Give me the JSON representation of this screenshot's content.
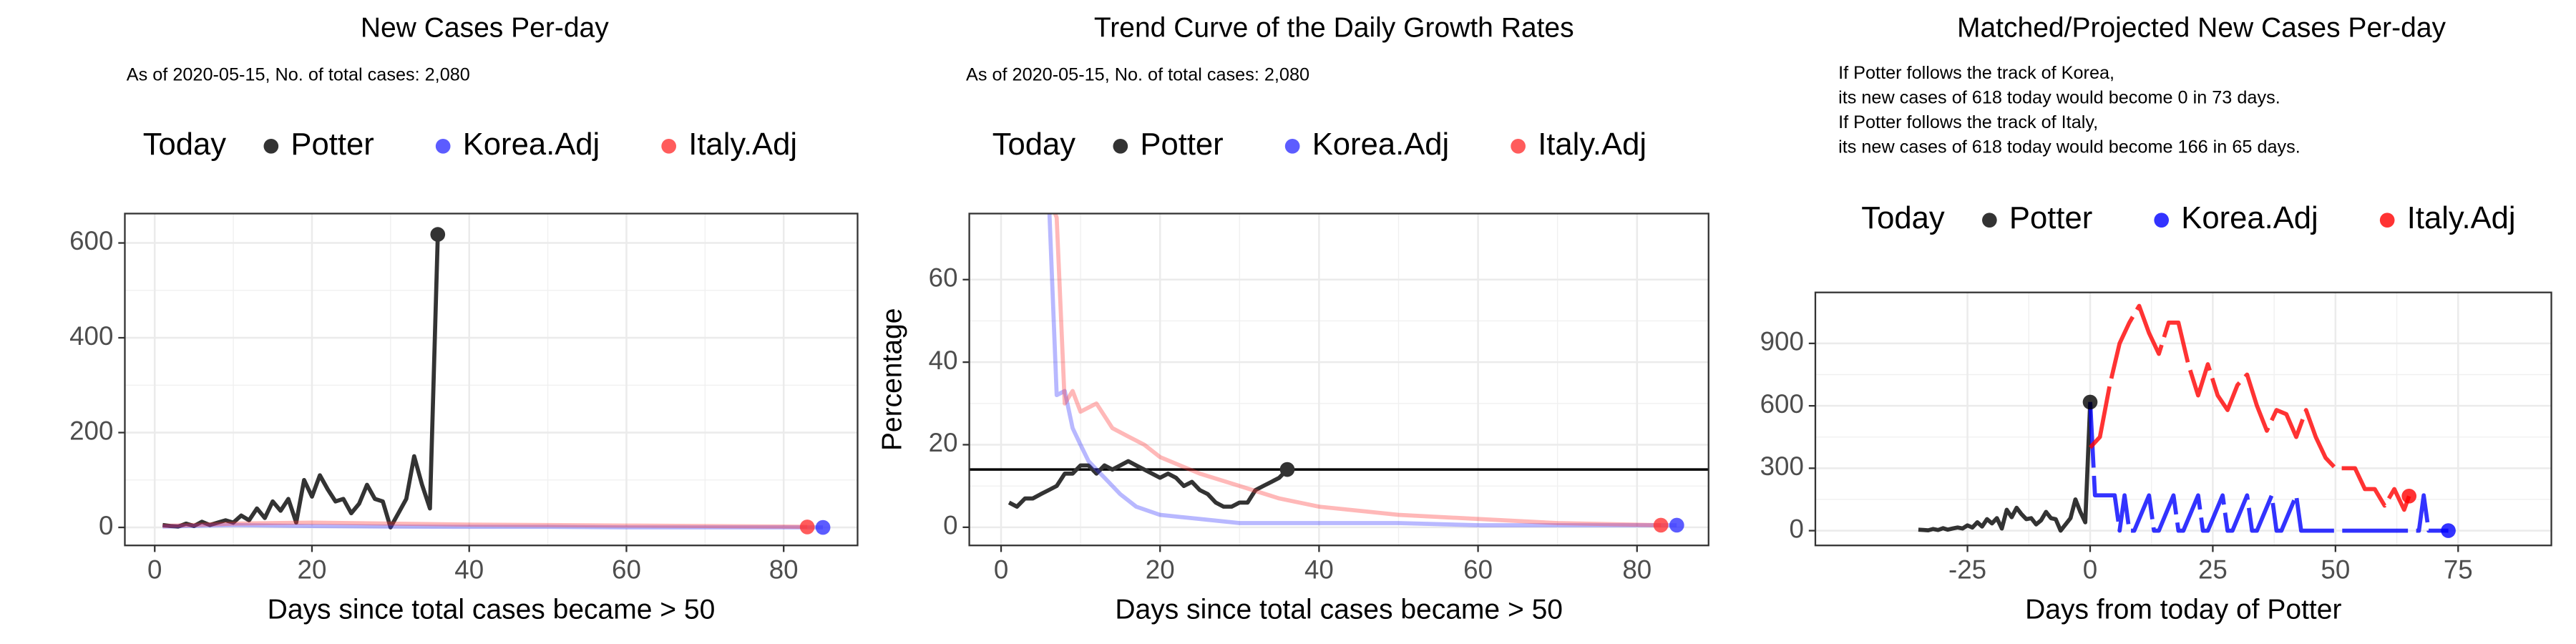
{
  "chart_data": [
    {
      "type": "line",
      "title": "New Cases Per-day",
      "subtitle": [
        "As of 2020-05-15, No. of total cases: 2,080"
      ],
      "legend_title": "Today",
      "x_label": "Days since total cases became > 50",
      "xlim": [
        -3.8,
        89.4
      ],
      "xticks": [
        0,
        20,
        40,
        60,
        80
      ],
      "ylim": [
        -38,
        662
      ],
      "yticks": [
        0,
        200,
        400,
        600
      ],
      "grid": true,
      "series": [
        {
          "name": "Potter",
          "color": "#333333",
          "opacity": 1,
          "x": [
            1,
            2,
            3,
            4,
            5,
            6,
            7,
            8,
            9,
            10,
            11,
            12,
            13,
            14,
            15,
            16,
            17,
            18,
            19,
            20,
            21,
            22,
            23,
            24,
            25,
            26,
            27,
            28,
            29,
            30,
            31,
            32,
            33,
            34,
            35,
            36
          ],
          "values": [
            5,
            3,
            2,
            8,
            3,
            12,
            5,
            10,
            15,
            10,
            25,
            15,
            40,
            20,
            55,
            35,
            60,
            10,
            100,
            65,
            110,
            80,
            55,
            60,
            30,
            50,
            90,
            60,
            55,
            0,
            30,
            60,
            150,
            90,
            40,
            618
          ]
        },
        {
          "name": "Korea.Adj",
          "color": "#3333ff",
          "opacity": 0.35,
          "x": [
            1,
            10,
            20,
            30,
            40,
            50,
            60,
            70,
            80,
            85
          ],
          "values": [
            2,
            5,
            3,
            2,
            1,
            1,
            0,
            0,
            0,
            0
          ]
        },
        {
          "name": "Italy.Adj",
          "color": "#ff3333",
          "opacity": 0.35,
          "x": [
            1,
            10,
            20,
            30,
            40,
            50,
            60,
            70,
            80,
            83
          ],
          "values": [
            3,
            8,
            10,
            8,
            6,
            5,
            4,
            3,
            2,
            1
          ]
        }
      ]
    },
    {
      "type": "line",
      "title": "Trend Curve of the Daily Growth Rates",
      "subtitle": [
        "As of 2020-05-15, No. of total cases: 2,080"
      ],
      "legend_title": "Today",
      "x_label": "Days since total cases became > 50",
      "y_label": "Percentage",
      "hline": 14,
      "xlim": [
        -4,
        89
      ],
      "xticks": [
        0,
        20,
        40,
        60,
        80
      ],
      "ylim": [
        -4.4,
        76
      ],
      "yticks": [
        0,
        20,
        40,
        60
      ],
      "grid": true,
      "series": [
        {
          "name": "Potter",
          "color": "#333333",
          "opacity": 1,
          "x": [
            1,
            2,
            3,
            4,
            5,
            6,
            7,
            8,
            9,
            10,
            11,
            12,
            13,
            14,
            15,
            16,
            17,
            18,
            19,
            20,
            21,
            22,
            23,
            24,
            25,
            26,
            27,
            28,
            29,
            30,
            31,
            32,
            33,
            34,
            35,
            36
          ],
          "values": [
            6,
            5,
            7,
            7,
            8,
            9,
            10,
            13,
            13,
            15,
            15,
            13,
            15,
            14,
            15,
            16,
            15,
            14,
            13,
            12,
            13,
            12,
            10,
            11,
            9,
            8,
            6,
            5,
            5,
            6,
            6,
            9,
            10,
            11,
            12,
            14
          ]
        },
        {
          "name": "Korea.Adj",
          "color": "#3333ff",
          "opacity": 0.35,
          "x": [
            6,
            7,
            8,
            9,
            10,
            11,
            12,
            13,
            15,
            17,
            20,
            25,
            30,
            40,
            50,
            60,
            70,
            80,
            85
          ],
          "values": [
            80,
            32,
            33,
            24,
            20,
            16,
            14,
            12,
            8,
            5,
            3,
            2,
            1,
            1,
            1,
            0.5,
            0.5,
            0.5,
            0.5
          ]
        },
        {
          "name": "Italy.Adj",
          "color": "#ff3333",
          "opacity": 0.35,
          "x": [
            6,
            7,
            8,
            9,
            10,
            12,
            14,
            16,
            18,
            20,
            25,
            30,
            35,
            40,
            50,
            60,
            70,
            83
          ],
          "values": [
            80,
            75,
            30,
            33,
            28,
            30,
            24,
            22,
            20,
            17,
            13,
            10,
            7,
            5,
            3,
            2,
            1,
            0.5
          ]
        }
      ]
    },
    {
      "type": "line",
      "title": "Matched/Projected New Cases Per-day",
      "subtitle": [
        "If Potter follows the track of Korea,",
        "its new cases of 618 today would become 0 in 73 days.",
        "If Potter follows the track of Italy,",
        "its new cases of 618 today would become 166 in 65 days."
      ],
      "legend_title": "Today",
      "x_label": "Days from today of Potter",
      "xlim": [
        -56,
        94
      ],
      "xticks": [
        -25,
        0,
        25,
        50,
        75
      ],
      "ylim": [
        -71,
        1145
      ],
      "yticks": [
        0,
        300,
        600,
        900
      ],
      "grid": true,
      "series": [
        {
          "name": "Potter",
          "color": "#000000",
          "opacity": 0.8,
          "x": [
            -35,
            -34,
            -33,
            -32,
            -31,
            -30,
            -29,
            -28,
            -27,
            -26,
            -25,
            -24,
            -23,
            -22,
            -21,
            -20,
            -19,
            -18,
            -17,
            -16,
            -15,
            -14,
            -13,
            -12,
            -11,
            -10,
            -9,
            -8,
            -7,
            -6,
            -5,
            -4,
            -3,
            -2,
            -1,
            0
          ],
          "values": [
            5,
            3,
            2,
            8,
            3,
            12,
            5,
            10,
            15,
            10,
            25,
            15,
            40,
            20,
            55,
            35,
            60,
            10,
            100,
            65,
            110,
            80,
            55,
            60,
            30,
            50,
            90,
            60,
            55,
            0,
            30,
            60,
            150,
            90,
            40,
            618
          ]
        },
        {
          "name": "Korea.Adj",
          "color": "#0000ff",
          "opacity": 0.8,
          "dashed": true,
          "x": [
            0,
            1,
            5,
            6,
            7,
            8,
            9,
            12,
            13,
            14,
            17,
            18,
            19,
            22,
            23,
            24,
            27,
            28,
            29,
            32,
            33,
            34,
            37,
            38,
            39,
            42,
            43,
            44,
            50,
            60,
            67,
            68,
            69,
            73
          ],
          "values": [
            618,
            170,
            170,
            0,
            170,
            0,
            0,
            170,
            0,
            0,
            170,
            0,
            0,
            170,
            0,
            0,
            170,
            0,
            0,
            170,
            0,
            0,
            170,
            0,
            0,
            170,
            0,
            0,
            0,
            0,
            0,
            170,
            0,
            0
          ]
        },
        {
          "name": "Italy.Adj",
          "color": "#ff0000",
          "opacity": 0.8,
          "dashed": true,
          "x": [
            0,
            2,
            4,
            6,
            8,
            10,
            12,
            14,
            16,
            18,
            20,
            22,
            24,
            26,
            28,
            30,
            32,
            34,
            36,
            38,
            40,
            42,
            44,
            46,
            48,
            50,
            52,
            54,
            56,
            58,
            60,
            62,
            64,
            65
          ],
          "values": [
            400,
            450,
            700,
            900,
            1000,
            1080,
            950,
            850,
            1000,
            1000,
            800,
            650,
            800,
            650,
            580,
            700,
            750,
            600,
            480,
            580,
            560,
            450,
            580,
            450,
            350,
            300,
            300,
            300,
            200,
            200,
            120,
            200,
            100,
            166
          ]
        }
      ]
    }
  ]
}
